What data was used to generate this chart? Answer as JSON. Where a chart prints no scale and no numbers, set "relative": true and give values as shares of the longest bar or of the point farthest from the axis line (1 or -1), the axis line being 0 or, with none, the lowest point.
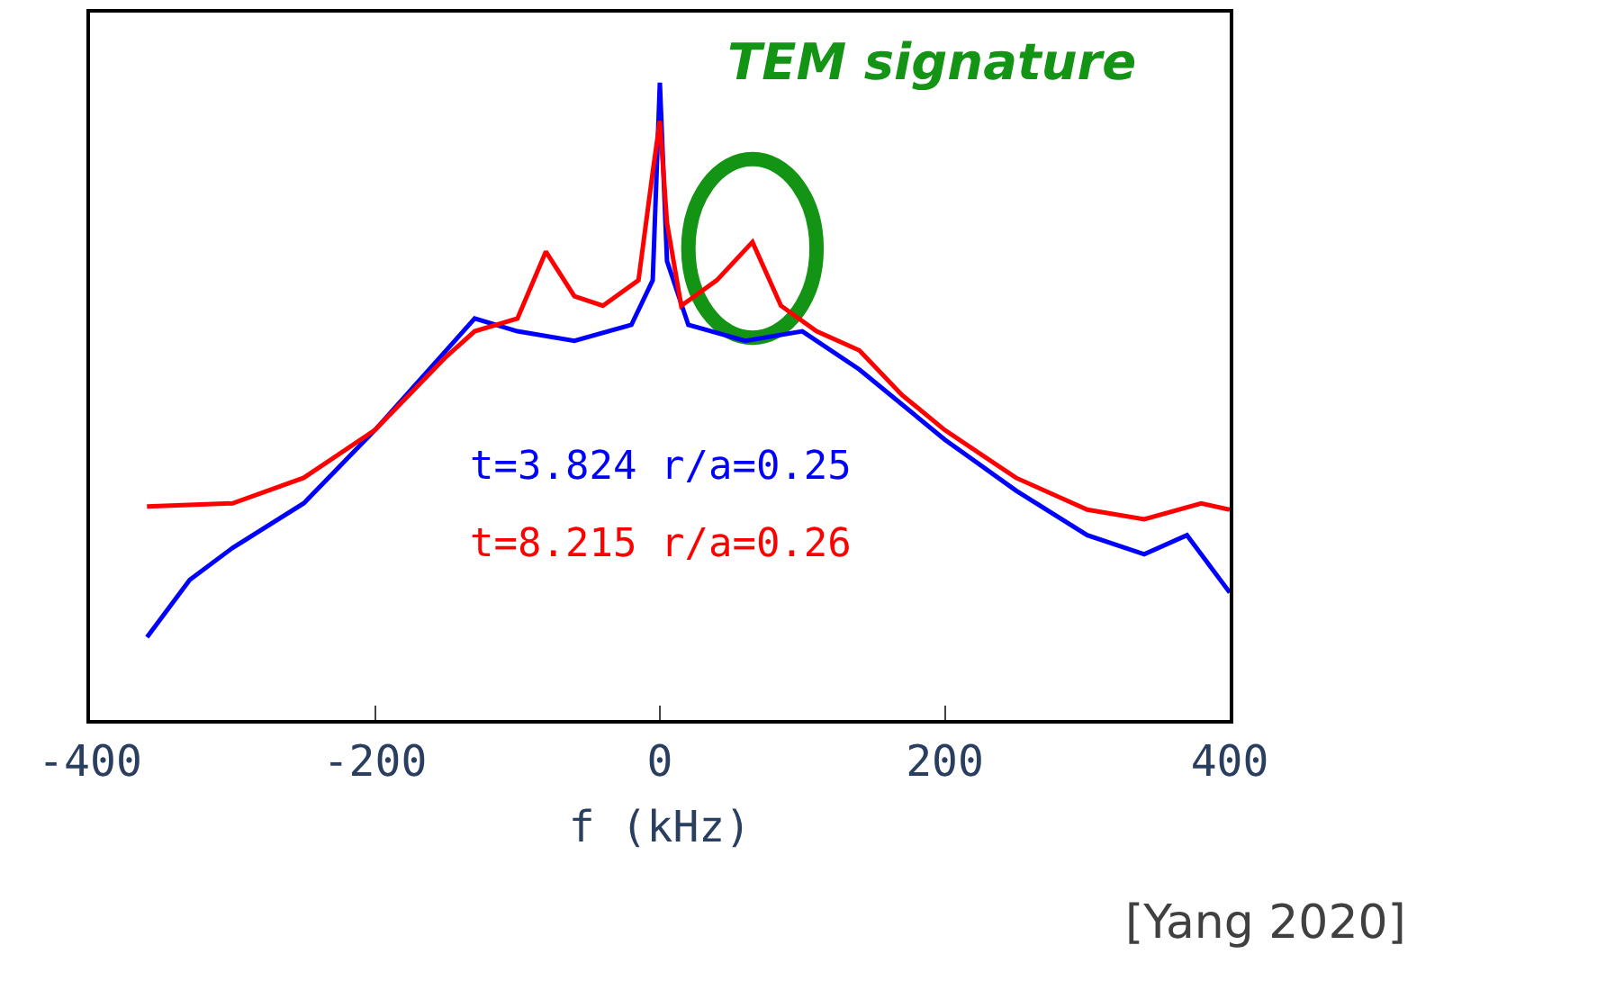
{
  "chart_data": {
    "type": "line",
    "relative": true,
    "xlabel": "f (kHz)",
    "xlim": [
      -400,
      400
    ],
    "xticks": [
      {
        "value": -400,
        "label": "-400"
      },
      -200,
      0,
      200,
      400
    ],
    "series": [
      {
        "name": "t=3.824 r/a=0.25",
        "color": "#0000ff",
        "x": [
          -360,
          -330,
          -300,
          -250,
          -200,
          -150,
          -130,
          -100,
          -60,
          -20,
          -5,
          0,
          5,
          20,
          60,
          100,
          140,
          200,
          250,
          300,
          340,
          370,
          400
        ],
        "values": [
          0.13,
          0.22,
          0.27,
          0.34,
          0.455,
          0.58,
          0.63,
          0.61,
          0.595,
          0.62,
          0.69,
          1,
          0.72,
          0.62,
          0.595,
          0.61,
          0.55,
          0.44,
          0.36,
          0.29,
          0.26,
          0.29,
          0.2
        ]
      },
      {
        "name": "t=8.215 r/a=0.26",
        "color": "#ff0000",
        "x": [
          -360,
          -300,
          -250,
          -200,
          -150,
          -130,
          -100,
          -80,
          -60,
          -40,
          -15,
          -5,
          0,
          5,
          15,
          40,
          65,
          85,
          110,
          140,
          170,
          200,
          250,
          300,
          340,
          380,
          400
        ],
        "values": [
          0.335,
          0.34,
          0.38,
          0.455,
          0.57,
          0.61,
          0.63,
          0.735,
          0.665,
          0.65,
          0.69,
          0.86,
          0.94,
          0.78,
          0.65,
          0.69,
          0.75,
          0.65,
          0.61,
          0.58,
          0.51,
          0.455,
          0.38,
          0.33,
          0.315,
          0.34,
          0.33
        ]
      }
    ],
    "annotations": [
      {
        "text": "TEM signature",
        "x": 65,
        "y": 0.75
      },
      "[Yang 2020]"
    ]
  }
}
